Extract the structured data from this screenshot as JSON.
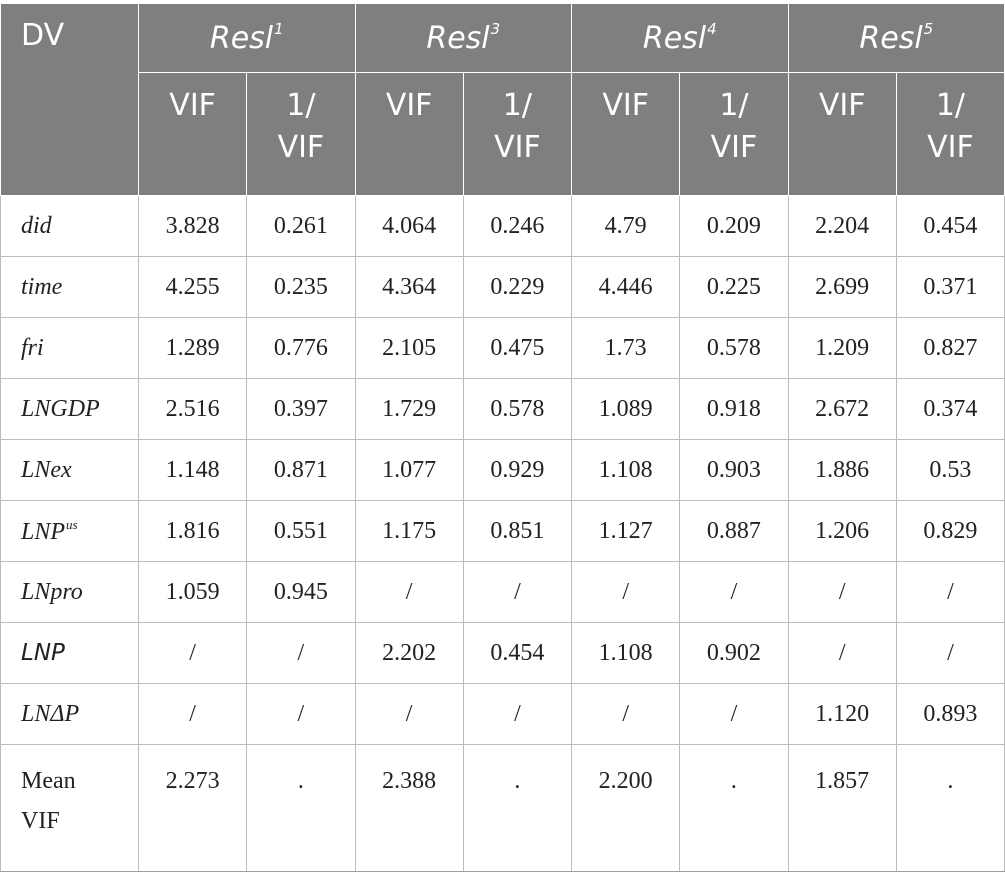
{
  "header": {
    "dv": "DV",
    "groups": [
      {
        "base": "Resl",
        "sup": "1"
      },
      {
        "base": "Resl",
        "sup": "3"
      },
      {
        "base": "Resl",
        "sup": "4"
      },
      {
        "base": "Resl",
        "sup": "5"
      }
    ],
    "vif": "VIF",
    "inv_line1": "1/",
    "inv_line2": "VIF"
  },
  "rows": [
    {
      "label": "did",
      "values": [
        "3.828",
        "0.261",
        "4.064",
        "0.246",
        "4.79",
        "0.209",
        "2.204",
        "0.454"
      ]
    },
    {
      "label": "time",
      "values": [
        "4.255",
        "0.235",
        "4.364",
        "0.229",
        "4.446",
        "0.225",
        "2.699",
        "0.371"
      ]
    },
    {
      "label": "fri",
      "values": [
        "1.289",
        "0.776",
        "2.105",
        "0.475",
        "1.73",
        "0.578",
        "1.209",
        "0.827"
      ]
    },
    {
      "label": "LNGDP",
      "values": [
        "2.516",
        "0.397",
        "1.729",
        "0.578",
        "1.089",
        "0.918",
        "2.672",
        "0.374"
      ]
    },
    {
      "label": "LNex",
      "values": [
        "1.148",
        "0.871",
        "1.077",
        "0.929",
        "1.108",
        "0.903",
        "1.886",
        "0.53"
      ]
    },
    {
      "label": "LNP",
      "label_sup": "us",
      "values": [
        "1.816",
        "0.551",
        "1.175",
        "0.851",
        "1.127",
        "0.887",
        "1.206",
        "0.829"
      ]
    },
    {
      "label": "LNpro",
      "values": [
        "1.059",
        "0.945",
        "/",
        "/",
        "/",
        "/",
        "/",
        "/"
      ]
    },
    {
      "label": "LNP",
      "values": [
        "/",
        "/",
        "2.202",
        "0.454",
        "1.108",
        "0.902",
        "/",
        "/"
      ]
    },
    {
      "label": "LNΔP",
      "values": [
        "/",
        "/",
        "/",
        "/",
        "/",
        "/",
        "1.120",
        "0.893"
      ]
    }
  ],
  "mean_row": {
    "label_line1": "Mean",
    "label_line2": "VIF",
    "values": [
      "2.273",
      ".",
      "2.388",
      ".",
      "2.200",
      ".",
      "1.857",
      "."
    ]
  }
}
